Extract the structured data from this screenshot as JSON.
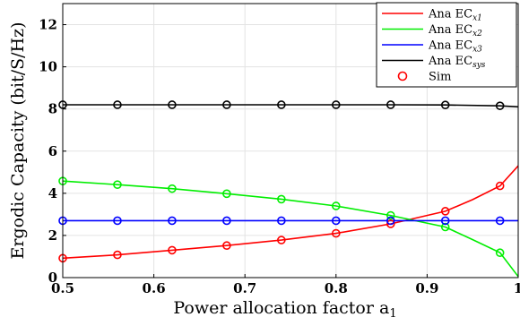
{
  "chart_data": {
    "type": "line",
    "xlabel": "Power allocation factor a",
    "xlabel_sub": "1",
    "ylabel": "Ergodic Capacity (bit/S/Hz)",
    "xlim": [
      0.5,
      1.0
    ],
    "ylim": [
      0,
      13
    ],
    "x_ticks": [
      "0.5",
      "0.6",
      "0.7",
      "0.8",
      "0.9",
      "1"
    ],
    "y_ticks": [
      "0",
      "2",
      "4",
      "6",
      "8",
      "10",
      "12"
    ],
    "grid": true,
    "legend_position": "top-right",
    "series": [
      {
        "name": "Ana EC_x1",
        "color": "#ff0000",
        "x": [
          0.5,
          0.56,
          0.62,
          0.68,
          0.74,
          0.8,
          0.86,
          0.92,
          0.95,
          0.98,
          1.0
        ],
        "y": [
          0.92,
          1.08,
          1.3,
          1.52,
          1.78,
          2.1,
          2.55,
          3.15,
          3.7,
          4.35,
          5.3
        ]
      },
      {
        "name": "Ana EC_x2",
        "color": "#00ee00",
        "x": [
          0.5,
          0.56,
          0.62,
          0.68,
          0.74,
          0.8,
          0.86,
          0.92,
          0.95,
          0.98,
          1.0
        ],
        "y": [
          4.58,
          4.41,
          4.22,
          3.98,
          3.72,
          3.4,
          2.95,
          2.4,
          1.8,
          1.18,
          0.05
        ]
      },
      {
        "name": "Ana EC_x3",
        "color": "#0000ff",
        "x": [
          0.5,
          0.56,
          0.62,
          0.68,
          0.74,
          0.8,
          0.86,
          0.92,
          0.98,
          1.0
        ],
        "y": [
          2.7,
          2.7,
          2.7,
          2.7,
          2.7,
          2.7,
          2.7,
          2.7,
          2.7,
          2.7
        ]
      },
      {
        "name": "Ana EC_sys",
        "color": "#000000",
        "x": [
          0.5,
          0.56,
          0.62,
          0.68,
          0.74,
          0.8,
          0.86,
          0.92,
          0.98,
          1.0
        ],
        "y": [
          8.2,
          8.2,
          8.2,
          8.2,
          8.2,
          8.2,
          8.2,
          8.19,
          8.15,
          8.1
        ]
      }
    ],
    "markers": {
      "name": "Sim",
      "color": "#ff0000",
      "x": [
        0.5,
        0.56,
        0.62,
        0.68,
        0.74,
        0.8,
        0.86,
        0.92,
        0.98
      ]
    },
    "legend": [
      {
        "label": "Ana EC",
        "sub": "x1",
        "color": "#ff0000",
        "kind": "line"
      },
      {
        "label": "Ana EC",
        "sub": "x2",
        "color": "#00ee00",
        "kind": "line"
      },
      {
        "label": "Ana EC",
        "sub": "x3",
        "color": "#0000ff",
        "kind": "line"
      },
      {
        "label": "Ana EC",
        "sub": "sys",
        "color": "#000000",
        "kind": "line"
      },
      {
        "label": "Sim",
        "sub": "",
        "color": "#ff0000",
        "kind": "marker"
      }
    ]
  }
}
